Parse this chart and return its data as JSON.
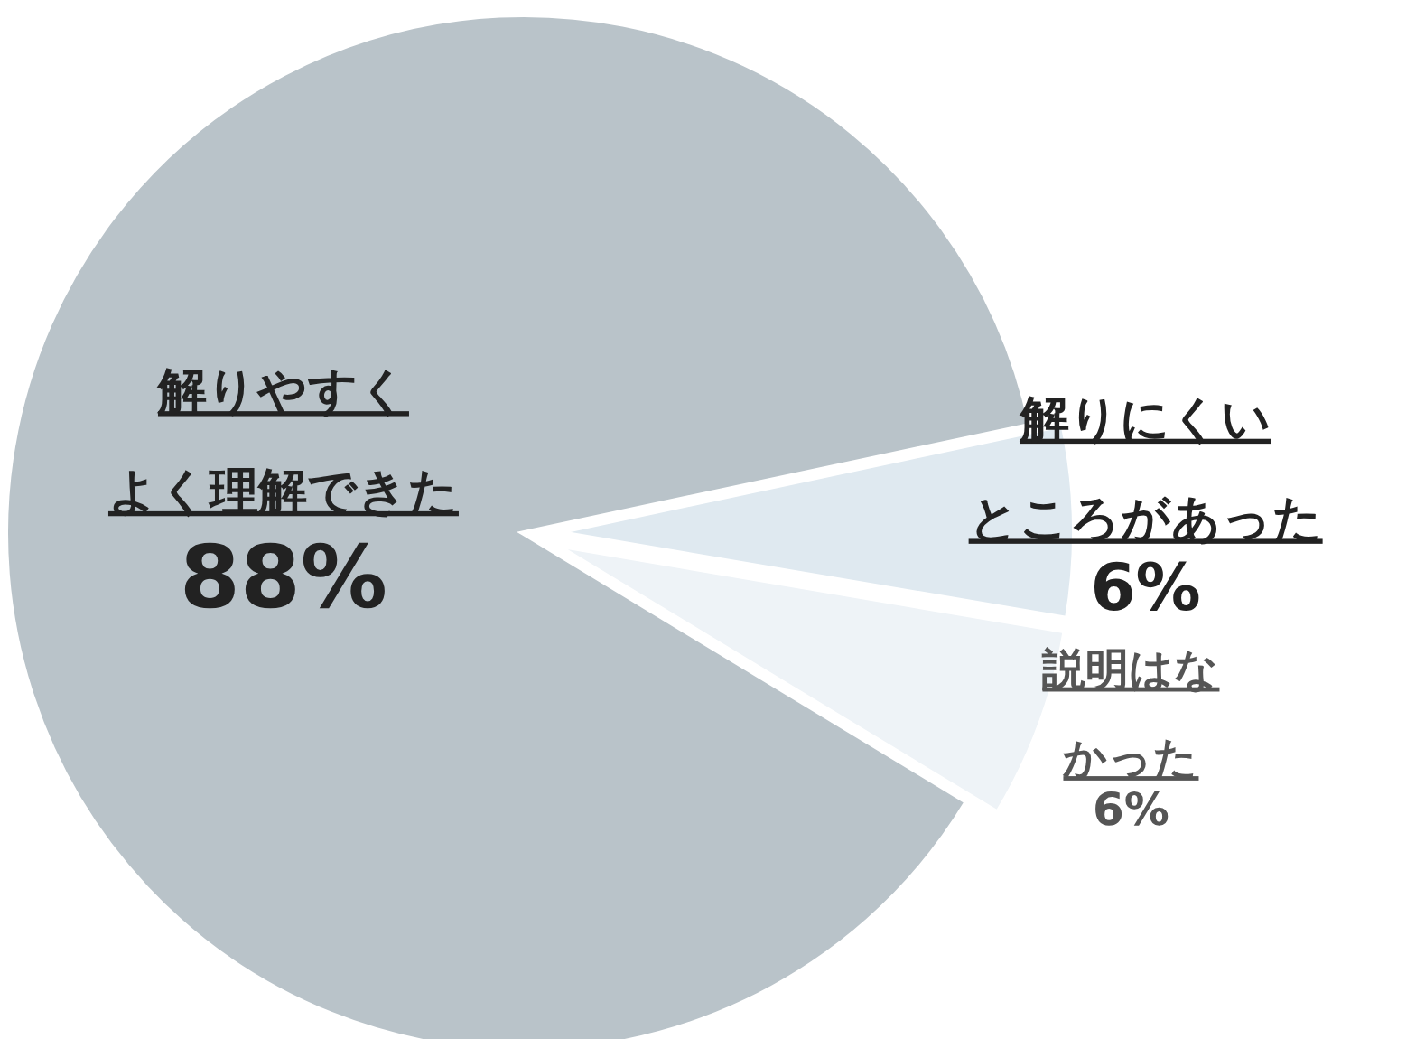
{
  "chart_data": {
    "type": "pie",
    "categories": [
      "解りやすくよく理解できた",
      "解りにくいところがあった",
      "説明はなかった"
    ],
    "values": [
      88,
      6,
      6
    ],
    "colors": [
      "#b9c3c9",
      "#dfe9f0",
      "#eef3f7"
    ],
    "value_labels": [
      "88%",
      "6%",
      "6%"
    ]
  }
}
